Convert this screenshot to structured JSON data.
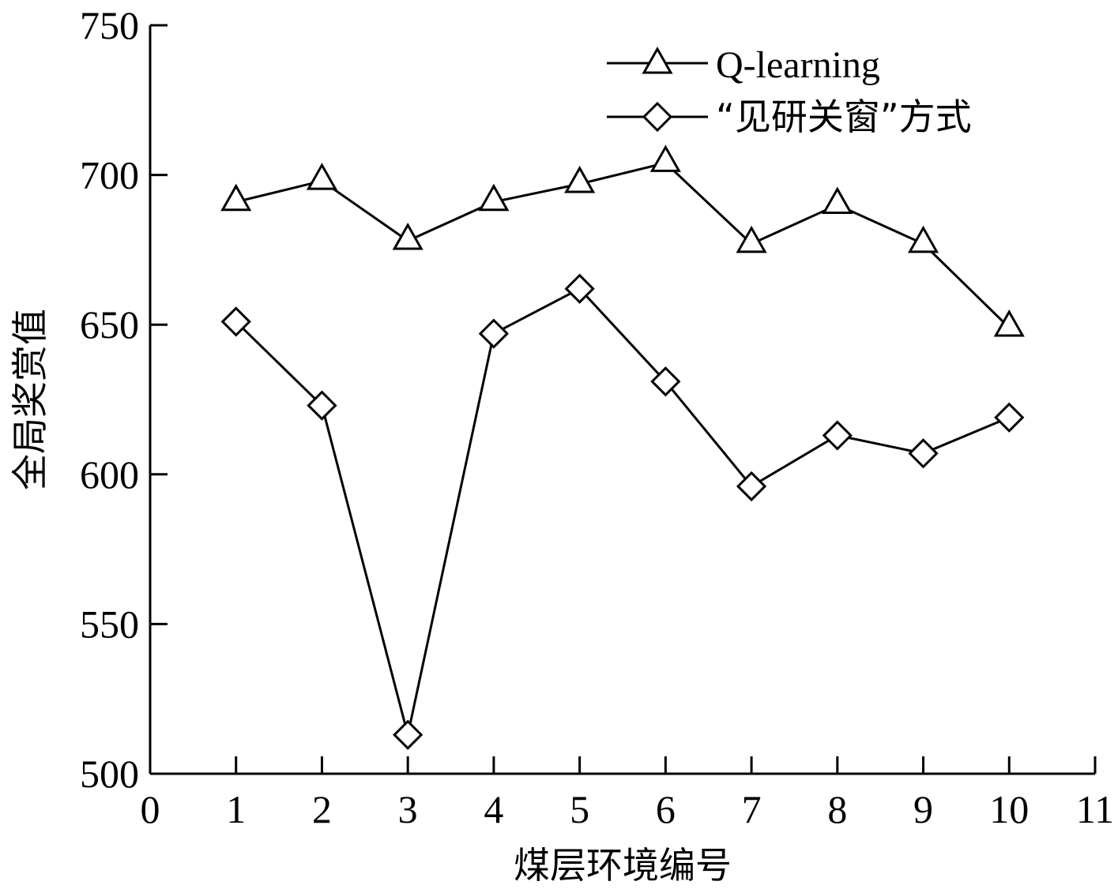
{
  "chart_data": {
    "type": "line",
    "xlabel": "煤层环境编号",
    "ylabel": "全局奖赏值",
    "xlim": [
      0,
      11
    ],
    "ylim": [
      500,
      750
    ],
    "xticks": [
      0,
      1,
      2,
      3,
      4,
      5,
      6,
      7,
      8,
      9,
      10,
      11
    ],
    "yticks": [
      500,
      550,
      600,
      650,
      700,
      750
    ],
    "grid": false,
    "legend_position": "top-right",
    "x": [
      1,
      2,
      3,
      4,
      5,
      6,
      7,
      8,
      9,
      10
    ],
    "series": [
      {
        "name": "Q-learning",
        "marker": "triangle",
        "values": [
          691,
          698,
          678,
          691,
          697,
          704,
          677,
          690,
          677,
          649
        ]
      },
      {
        "name": "“见研关窗”方式",
        "marker": "diamond",
        "values": [
          651,
          623,
          513,
          647,
          662,
          631,
          596,
          613,
          607,
          619
        ]
      }
    ]
  }
}
